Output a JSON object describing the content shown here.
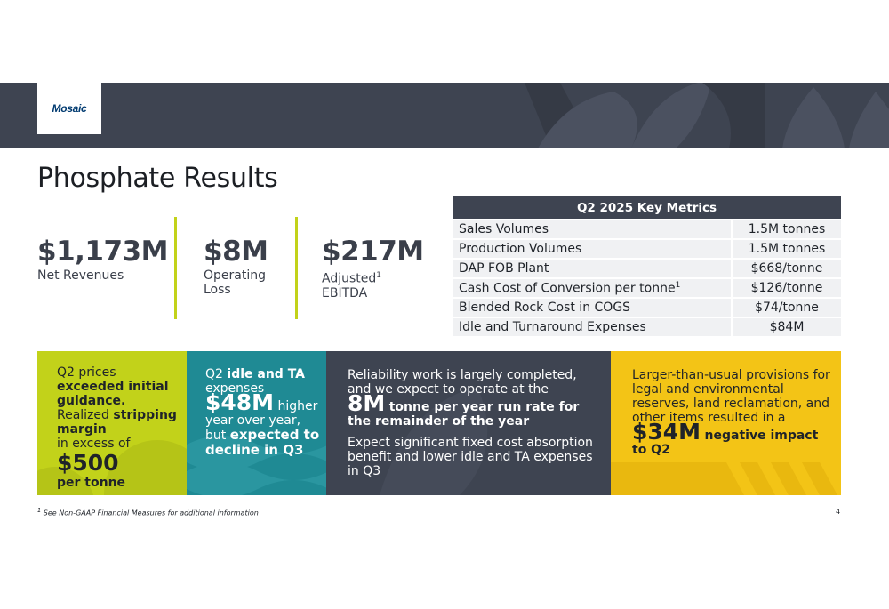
{
  "logo": {
    "text": "Mosaic"
  },
  "title": "Phosphate Results",
  "kpis": [
    {
      "value": "$1,173M",
      "label": "Net Revenues"
    },
    {
      "value": "$8M",
      "label_line1": "Operating",
      "label_line2": "Loss"
    },
    {
      "value": "$217M",
      "label_line1": "Adjusted",
      "label_sup": "1",
      "label_line2": "EBITDA"
    }
  ],
  "metrics": {
    "title": "Q2 2025 Key Metrics",
    "rows": [
      {
        "label": "Sales Volumes",
        "sup": "",
        "value": "1.5M tonnes"
      },
      {
        "label": "Production Volumes",
        "sup": "",
        "value": "1.5M tonnes"
      },
      {
        "label": "DAP FOB Plant",
        "sup": "",
        "value": "$668/tonne"
      },
      {
        "label": "Cash Cost of Conversion per tonne",
        "sup": "1",
        "value": "$126/tonne"
      },
      {
        "label": "Blended Rock Cost in COGS",
        "sup": "",
        "value": "$74/tonne"
      },
      {
        "label": "Idle and Turnaround Expenses",
        "sup": "",
        "value": "$84M"
      }
    ]
  },
  "panels": {
    "p1": {
      "t1": "Q2 prices",
      "b1": "exceeded initial guidance.",
      "t2": "Realized",
      "b2": "stripping margin",
      "t3": "in excess of",
      "big": "$500",
      "b3": "per tonne"
    },
    "p2": {
      "t1": "Q2",
      "b1": "idle and TA",
      "t2": "expenses",
      "big": "$48M",
      "t3": "higher year over year, but",
      "b2": "expected to decline in Q3"
    },
    "p3": {
      "t1": "Reliability work is largely completed, and we expect to operate at the",
      "big": "8M",
      "b1": "tonne per year run rate for the remainder of the year",
      "t2": "Expect significant fixed cost absorption benefit and lower idle and TA expenses in Q3"
    },
    "p4": {
      "t1": "Larger-than-usual provisions for legal and environmental reserves, land reclamation, and other items resulted in a",
      "big": "$34M",
      "b1": "negative impact to Q2"
    }
  },
  "footnote": {
    "sup": "1",
    "text": "See Non-GAAP Financial Measures for additional information"
  },
  "page_number": "4",
  "colors": {
    "banner": "#3e4451",
    "lime": "#c2d21a",
    "teal": "#1f8a94",
    "slate": "#3e4451",
    "yellow": "#f3c416"
  }
}
